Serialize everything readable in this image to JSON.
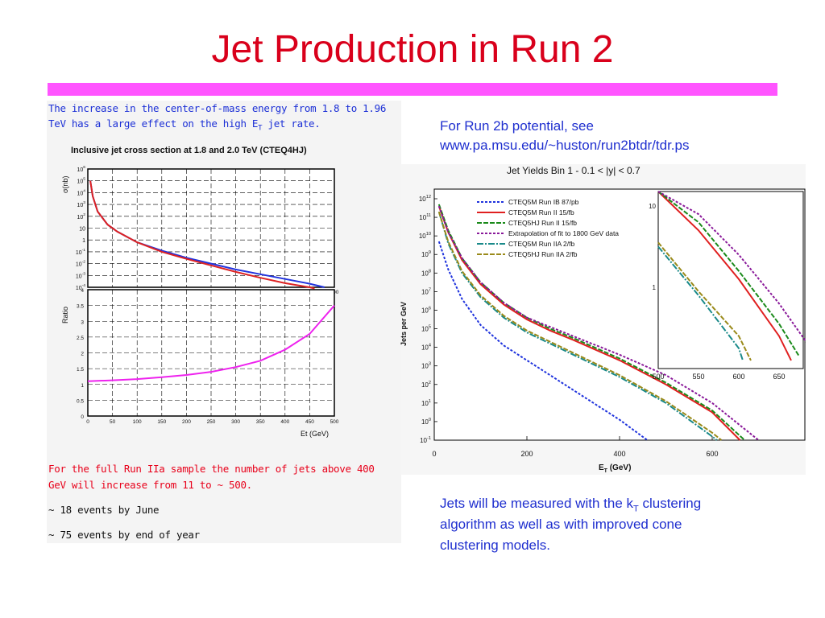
{
  "slide": {
    "title": "Jet Production in Run 2",
    "accent_bar_color": "#ff55ff",
    "title_color": "#d9001b",
    "text_blue": "#1f2fcf"
  },
  "left": {
    "intro_line1": "The increase in the center-of-mass energy from 1.8 to 1.96",
    "intro_line2": "TeV has a large effect on the high E",
    "intro_line2_sub": "T",
    "intro_line2_end": " jet rate.",
    "run2a_line1": "For the full Run IIa sample the number of jets above 400",
    "run2a_line2": "GeV will increase from 11 to ~ 500.",
    "events_june": "~ 18 events by June",
    "events_year": "~ 75 events by end of year"
  },
  "right": {
    "link_line1": "For Run 2b potential, see",
    "link_line2": "www.pa.msu.edu/~huston/run2btdr/tdr.ps",
    "jets_line1_a": "Jets will be measured with the k",
    "jets_line1_sub": "T",
    "jets_line1_b": " clustering",
    "jets_line2": "algorithm as well as with improved cone",
    "jets_line3": "clustering models."
  },
  "chart_data": [
    {
      "type": "line",
      "title": "Inclusive jet cross section at 1.8 and 2.0 TeV (CTEQ4HJ)",
      "ylabel": "σ(nb)",
      "log_y": true,
      "xlim": [
        0,
        500
      ],
      "ylim_exponent": [
        -4,
        6
      ],
      "ytick_labels": [
        "10^6",
        "10^5",
        "10^4",
        "10^3",
        "10^2",
        "10",
        "1",
        "10^-1",
        "10^-2",
        "10^-3",
        "10^-4"
      ],
      "xtick_labels": [
        "50",
        "100",
        "150",
        "200",
        "250",
        "300",
        "350",
        "400",
        "450",
        "500"
      ],
      "grid": true,
      "series": [
        {
          "name": "",
          "color": "#2233dd",
          "x": [
            5,
            10,
            20,
            40,
            60,
            100,
            150,
            200,
            250,
            300,
            350,
            400,
            450,
            480
          ],
          "log10_y": [
            5.0,
            3.7,
            2.4,
            1.3,
            0.7,
            -0.2,
            -0.9,
            -1.5,
            -2.0,
            -2.5,
            -2.9,
            -3.3,
            -3.7,
            -4.0
          ]
        },
        {
          "name": "",
          "color": "#dd2222",
          "x": [
            5,
            10,
            20,
            40,
            60,
            100,
            150,
            200,
            250,
            300,
            350,
            400,
            450,
            460
          ],
          "log10_y": [
            5.0,
            3.7,
            2.4,
            1.3,
            0.7,
            -0.2,
            -1.0,
            -1.6,
            -2.15,
            -2.7,
            -3.2,
            -3.65,
            -4.0,
            -4.1
          ]
        }
      ]
    },
    {
      "type": "line",
      "ylabel": "Ratio",
      "xlabel": "Et (GeV)",
      "xlim": [
        0,
        500
      ],
      "ylim": [
        0,
        4
      ],
      "xtick_labels": [
        "0",
        "50",
        "100",
        "150",
        "200",
        "250",
        "300",
        "350",
        "400",
        "450",
        "500"
      ],
      "ytick_labels": [
        "0",
        "0.5",
        "1",
        "1.5",
        "2",
        "2.5",
        "3",
        "3.5",
        "4"
      ],
      "grid": true,
      "series": [
        {
          "name": "",
          "color": "#ee22ee",
          "x": [
            0,
            50,
            100,
            150,
            200,
            250,
            300,
            350,
            400,
            450,
            500
          ],
          "y": [
            1.1,
            1.13,
            1.17,
            1.23,
            1.3,
            1.4,
            1.55,
            1.75,
            2.1,
            2.6,
            3.5
          ]
        }
      ]
    },
    {
      "type": "line",
      "title": "Jet Yields Bin 1 - 0.1 < |y| < 0.7",
      "ylabel": "Jets per GeV",
      "xlabel": "E_T (GeV)",
      "log_y": true,
      "xlim": [
        0,
        800
      ],
      "ylim_exponent": [
        -1,
        12
      ],
      "xtick_labels": [
        "0",
        "200",
        "400",
        "600"
      ],
      "ytick_labels": [
        "10^12",
        "10^11",
        "10^10",
        "10^9",
        "10^8",
        "10^7",
        "10^6",
        "10^5",
        "10^4",
        "10^3",
        "10^2",
        "10^1",
        "10^0",
        "10^-1"
      ],
      "legend_position": "top-left",
      "series": [
        {
          "name": "CTEQ5M Run IB 87/pb",
          "color": "#1f33dd",
          "x": [
            10,
            30,
            60,
            100,
            150,
            200,
            250,
            300,
            350,
            400,
            460
          ],
          "log10_y": [
            9.7,
            8.2,
            6.6,
            5.2,
            4.1,
            3.3,
            2.5,
            1.7,
            0.9,
            0.1,
            -1.0
          ]
        },
        {
          "name": "CTEQ5M Run II 15/fb",
          "color": "#e02020",
          "x": [
            10,
            30,
            60,
            100,
            150,
            200,
            250,
            300,
            400,
            500,
            600,
            660
          ],
          "log10_y": [
            11.6,
            10.2,
            8.7,
            7.4,
            6.3,
            5.5,
            4.9,
            4.4,
            3.3,
            2.0,
            0.5,
            -1.0
          ]
        },
        {
          "name": "CTEQ5HJ Run II 15/fb",
          "color": "#1a8a1a",
          "x": [
            10,
            30,
            60,
            100,
            150,
            200,
            250,
            300,
            400,
            500,
            600,
            670
          ],
          "log10_y": [
            11.7,
            10.3,
            8.8,
            7.5,
            6.4,
            5.6,
            5.0,
            4.5,
            3.4,
            2.1,
            0.6,
            -1.0
          ]
        },
        {
          "name": "Extrapolation of fit to 1800 GeV data",
          "color": "#8a1a9a",
          "x": [
            10,
            30,
            60,
            100,
            150,
            200,
            250,
            300,
            400,
            500,
            600,
            700
          ],
          "log10_y": [
            11.6,
            10.2,
            8.8,
            7.5,
            6.4,
            5.6,
            5.1,
            4.6,
            3.6,
            2.5,
            1.0,
            -1.0
          ]
        },
        {
          "name": "CTEQ5M Run IIA 2/fb",
          "color": "#1a8a8a",
          "x": [
            10,
            30,
            60,
            100,
            150,
            200,
            250,
            300,
            400,
            500,
            600,
            610
          ],
          "log10_y": [
            11.3,
            9.6,
            8.0,
            6.7,
            5.6,
            4.8,
            4.2,
            3.6,
            2.4,
            1.0,
            -0.8,
            -1.0
          ]
        },
        {
          "name": "CTEQ5HJ Run IIA 2/fb",
          "color": "#9a8a1a",
          "x": [
            10,
            30,
            60,
            100,
            150,
            200,
            250,
            300,
            400,
            500,
            600,
            620
          ],
          "log10_y": [
            11.3,
            9.7,
            8.1,
            6.8,
            5.7,
            4.9,
            4.3,
            3.7,
            2.5,
            1.1,
            -0.6,
            -1.0
          ]
        }
      ]
    },
    {
      "type": "line",
      "title": "",
      "xlim": [
        500,
        680
      ],
      "xtick_labels": [
        "500",
        "550",
        "600",
        "650"
      ],
      "ytick_labels": [
        "10",
        "1"
      ],
      "series": [
        {
          "name": "CTEQ5M Run II 15/fb",
          "color": "#e02020",
          "x": [
            500,
            550,
            600,
            650,
            665
          ],
          "log10_y": [
            1.3,
            0.7,
            0.1,
            -0.6,
            -0.9
          ]
        },
        {
          "name": "CTEQ5HJ Run II 15/fb",
          "color": "#1a8a1a",
          "x": [
            500,
            550,
            600,
            650,
            675
          ],
          "log10_y": [
            1.35,
            0.8,
            0.2,
            -0.45,
            -0.85
          ]
        },
        {
          "name": "Extrapolation of fit to 1800 GeV data",
          "color": "#8a1a9a",
          "x": [
            500,
            550,
            600,
            650,
            700
          ],
          "log10_y": [
            1.4,
            0.9,
            0.4,
            -0.2,
            -0.9
          ]
        },
        {
          "name": "CTEQ5M Run IIA 2/fb",
          "color": "#1a8a8a",
          "x": [
            500,
            550,
            600,
            605
          ],
          "log10_y": [
            0.5,
            -0.1,
            -0.75,
            -0.9
          ]
        },
        {
          "name": "CTEQ5HJ Run IIA 2/fb",
          "color": "#9a8a1a",
          "x": [
            500,
            550,
            600,
            615
          ],
          "log10_y": [
            0.55,
            -0.05,
            -0.6,
            -0.9
          ]
        }
      ]
    }
  ]
}
